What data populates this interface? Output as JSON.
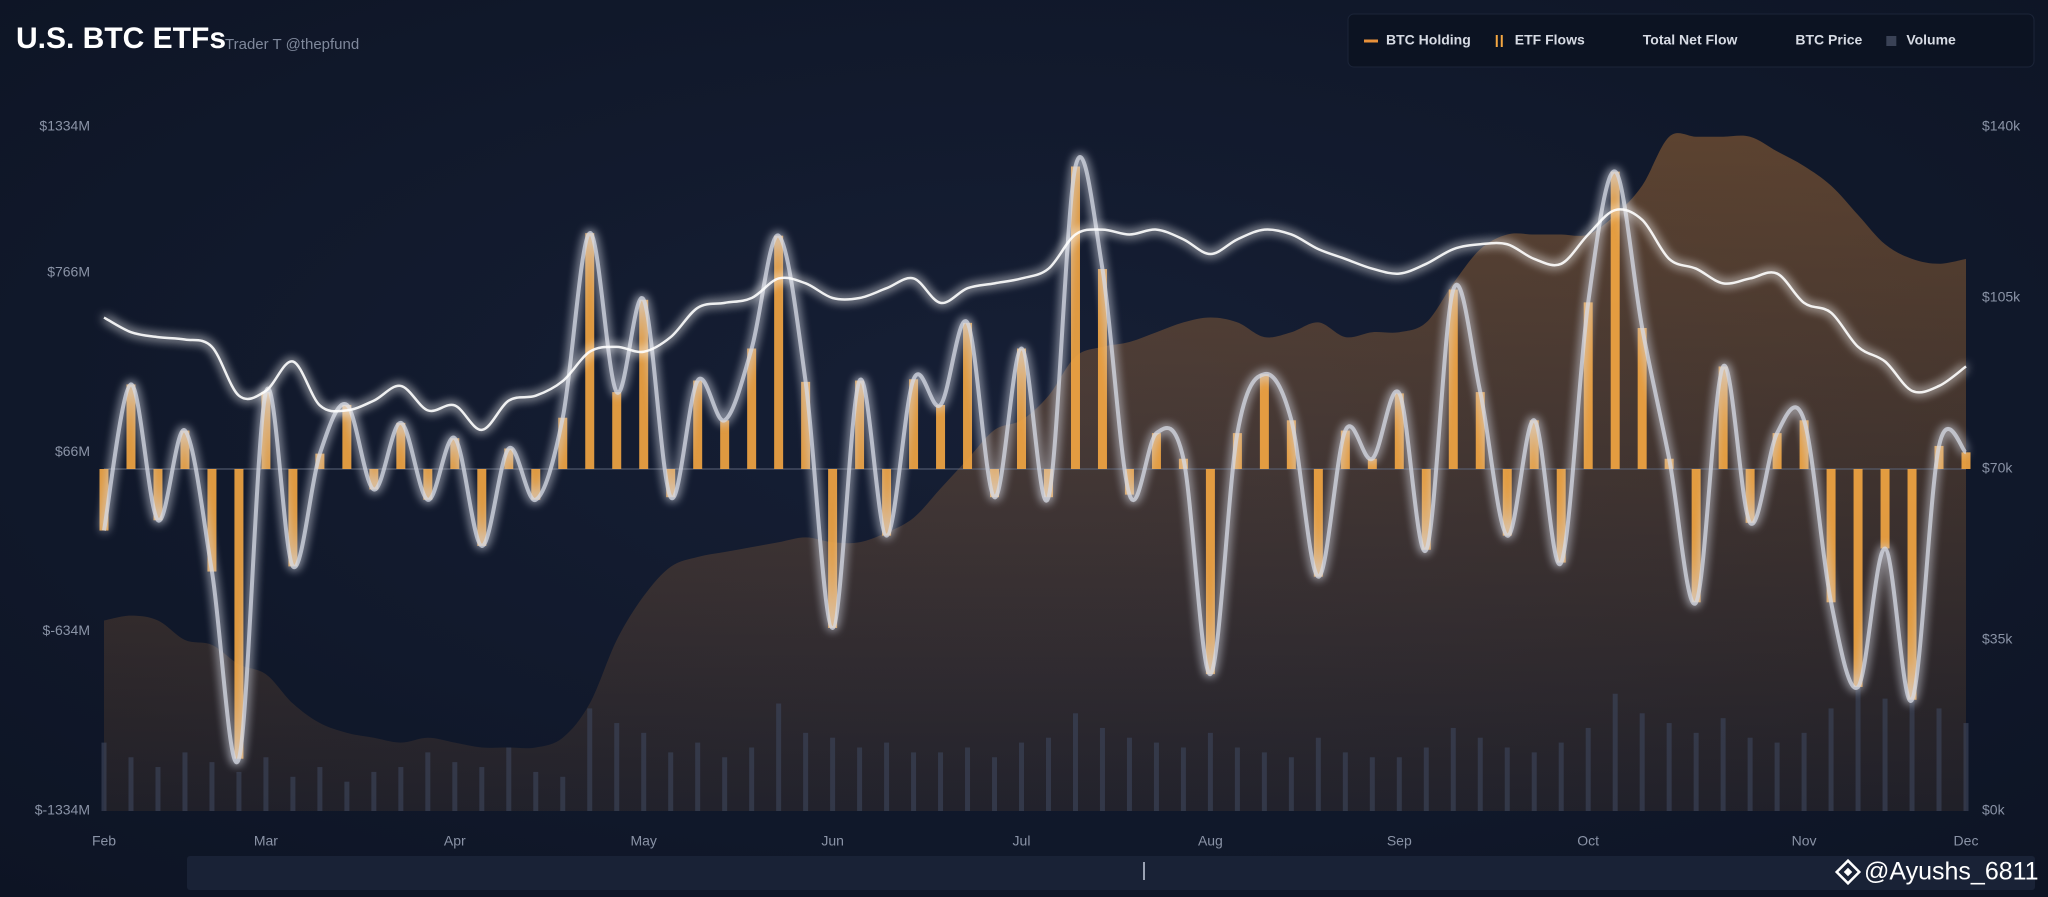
{
  "chart_data": {
    "type": "combo",
    "title": "U.S. BTC ETFs",
    "subtitle": "Trader T @thepfund",
    "watermark": "@Ayushs_6811",
    "categories": [
      "Feb",
      null,
      null,
      null,
      null,
      null,
      "Mar",
      null,
      null,
      null,
      null,
      null,
      null,
      "Apr",
      null,
      null,
      null,
      null,
      null,
      null,
      "May",
      null,
      null,
      null,
      null,
      null,
      null,
      "Jun",
      null,
      null,
      null,
      null,
      null,
      null,
      "Jul",
      null,
      null,
      null,
      null,
      null,
      null,
      "Aug",
      null,
      null,
      null,
      null,
      null,
      null,
      "Sep",
      null,
      null,
      null,
      null,
      null,
      null,
      "Oct",
      null,
      null,
      null,
      null,
      null,
      null,
      null,
      "Nov",
      null,
      null,
      null,
      null,
      null,
      "Dec"
    ],
    "ylim": [
      -1334,
      1334
    ],
    "yticks": [
      {
        "value": -1334,
        "label": "$-1334M"
      },
      {
        "value": -634,
        "label": "$-634M"
      },
      {
        "value": 66,
        "label": "$66M"
      },
      {
        "value": 766,
        "label": "$766M"
      },
      {
        "value": 1334,
        "label": "$1334M"
      }
    ],
    "y2lim": [
      0,
      140000
    ],
    "y2ticks": [
      {
        "value": 0,
        "label": "$0k"
      },
      {
        "value": 35000,
        "label": "$35k"
      },
      {
        "value": 70000,
        "label": "$70k"
      },
      {
        "value": 105000,
        "label": "$105k"
      },
      {
        "value": 140000,
        "label": "$140k"
      }
    ],
    "grid": false,
    "legend": "top-right",
    "series": [
      {
        "name": "BTC Holding",
        "type": "area",
        "axis": "y2",
        "color": "#e8913a",
        "values": [
          39000,
          40000,
          39000,
          35000,
          34000,
          30000,
          28000,
          22000,
          18000,
          16000,
          15000,
          14000,
          15000,
          14000,
          13000,
          13000,
          13000,
          15000,
          22000,
          35000,
          44000,
          50000,
          52000,
          53000,
          54000,
          55000,
          56000,
          55000,
          55000,
          57000,
          60000,
          66000,
          72000,
          78000,
          80000,
          85000,
          93000,
          95000,
          96000,
          98000,
          100000,
          101000,
          100000,
          97000,
          98000,
          100000,
          97000,
          98000,
          98000,
          100000,
          108000,
          115000,
          118000,
          118000,
          118000,
          118000,
          122000,
          128000,
          138000,
          138000,
          138000,
          138000,
          135000,
          132000,
          128000,
          122000,
          116000,
          113000,
          112000,
          113000
        ]
      },
      {
        "name": "ETF Flows",
        "type": "bar",
        "axis": "y",
        "color": "#f5a742",
        "values": [
          -240,
          330,
          -200,
          150,
          -400,
          -1130,
          300,
          -380,
          60,
          250,
          -80,
          180,
          -120,
          120,
          -300,
          80,
          -120,
          200,
          920,
          300,
          660,
          -110,
          345,
          190,
          470,
          910,
          340,
          -620,
          345,
          -260,
          350,
          250,
          570,
          -110,
          470,
          -110,
          1180,
          780,
          -100,
          140,
          40,
          -800,
          140,
          370,
          190,
          -420,
          150,
          40,
          295,
          -315,
          700,
          300,
          -260,
          190,
          -365,
          650,
          1160,
          550,
          40,
          -520,
          400,
          -210,
          140,
          190,
          -520,
          -850,
          -310,
          -900,
          90,
          65
        ]
      },
      {
        "name": "Total Net Flow",
        "type": "line",
        "axis": "y",
        "color": "#d6dae4",
        "values": [
          -240,
          330,
          -200,
          150,
          -400,
          -1130,
          300,
          -380,
          60,
          250,
          -80,
          180,
          -120,
          120,
          -300,
          80,
          -120,
          200,
          920,
          300,
          660,
          -110,
          345,
          190,
          470,
          910,
          340,
          -620,
          345,
          -260,
          350,
          250,
          570,
          -110,
          470,
          -110,
          1180,
          780,
          -100,
          140,
          40,
          -800,
          140,
          370,
          190,
          -420,
          150,
          40,
          295,
          -315,
          700,
          300,
          -260,
          190,
          -365,
          650,
          1160,
          550,
          40,
          -520,
          400,
          -210,
          140,
          190,
          -520,
          -850,
          -310,
          -900,
          90,
          65
        ]
      },
      {
        "name": "BTC Price",
        "type": "line",
        "axis": "y2",
        "color": "#ffffff",
        "values": [
          101000,
          98000,
          97000,
          96500,
          95000,
          85000,
          86000,
          92000,
          83000,
          82000,
          84000,
          87000,
          82000,
          83000,
          78000,
          84000,
          85000,
          88000,
          94000,
          95000,
          94000,
          97000,
          103000,
          104000,
          105000,
          109000,
          108000,
          105000,
          105000,
          107000,
          109000,
          104000,
          107000,
          108000,
          109000,
          111000,
          118000,
          119000,
          118000,
          119000,
          117000,
          114000,
          117000,
          119000,
          118000,
          115000,
          113000,
          111000,
          110000,
          112000,
          115000,
          116000,
          116000,
          113000,
          112000,
          118000,
          123000,
          121000,
          113000,
          111000,
          108000,
          109000,
          110000,
          104000,
          102000,
          95000,
          92000,
          86000,
          87000,
          91000
        ]
      },
      {
        "name": "Volume",
        "type": "volume",
        "axis": "y2",
        "color": "#3a4256",
        "values": [
          14000,
          11000,
          9000,
          12000,
          10000,
          8000,
          11000,
          7000,
          9000,
          6000,
          8000,
          9000,
          12000,
          10000,
          9000,
          13000,
          8000,
          7000,
          21000,
          18000,
          16000,
          12000,
          14000,
          11000,
          13000,
          22000,
          16000,
          15000,
          13000,
          14000,
          12000,
          12000,
          13000,
          11000,
          14000,
          15000,
          20000,
          17000,
          15000,
          14000,
          13000,
          16000,
          13000,
          12000,
          11000,
          15000,
          12000,
          11000,
          11000,
          13000,
          17000,
          15000,
          13000,
          12000,
          14000,
          17000,
          24000,
          20000,
          18000,
          16000,
          19000,
          15000,
          14000,
          16000,
          21000,
          28000,
          23000,
          30000,
          21000,
          18000
        ]
      }
    ]
  }
}
